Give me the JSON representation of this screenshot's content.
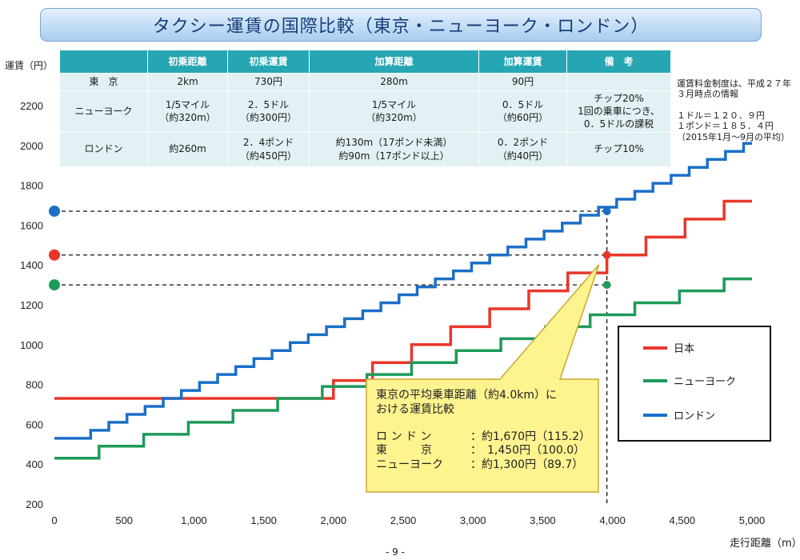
{
  "title": "タクシー運賃の国際比較（東京・ニューヨーク・ロンドン）",
  "fare_table": {
    "headers": [
      "",
      "初乗距離",
      "初乗運賃",
      "加算距離",
      "加算運賃",
      "備　考"
    ],
    "rows": [
      [
        "東　京",
        "2km",
        "730円",
        "280m",
        "90円",
        ""
      ],
      [
        "ニューヨーク",
        "1/5マイル\n（約320m）",
        "2．5ドル\n（約300円）",
        "1/5マイル\n（約320m）",
        "0．5ドル\n（約60円）",
        "チップ20%\n1回の乗車につき、\n0．5ドルの課税"
      ],
      [
        "ロンドン",
        "約260m",
        "2．4ポンド\n（約450円）",
        "約130m（17ポンド未満）\n約90m（17ポンド以上）",
        "0．2ポンド\n（約40円）",
        "チップ10%"
      ]
    ]
  },
  "notes": {
    "fare_basis": "運賃料金制度は、平成２７年\n３月時点の情報",
    "exchange": "１ドル＝１２０．９円\n１ポンド＝１８５．４円\n（2015年1月～9月の平均）"
  },
  "callout": {
    "heading": "東京の平均乗車距離（約4.0km）に\nおける運賃比較",
    "rows": [
      {
        "label": "ロ ン ド ン",
        "value": "：約1,670円（115.2）"
      },
      {
        "label": "東　　　京",
        "value": "：　1,450円（100.0）"
      },
      {
        "label": "ニューヨーク",
        "value": "：約1,300円（89.7）"
      }
    ]
  },
  "page_number": "- 9 -",
  "colors": {
    "japan": "#e8372a",
    "new_york": "#1e9a5a",
    "london": "#1b6fc8",
    "table_header": "#26a6b3",
    "table_cell": "#e1f1f4",
    "callout_fill": "#fdf38f"
  },
  "chart_data": {
    "type": "line",
    "xlabel": "走行距離（m）",
    "ylabel": "運賃（円）",
    "xlim": [
      0,
      5000
    ],
    "ylim": [
      200,
      2200
    ],
    "x_ticks": [
      0,
      500,
      1000,
      1500,
      2000,
      2500,
      3000,
      3500,
      4000,
      4500,
      5000
    ],
    "x_tick_labels": [
      "0",
      "500",
      "1,000",
      "1,500",
      "2,000",
      "2,500",
      "3,000",
      "3,500",
      "4,000",
      "4,500",
      "5,000"
    ],
    "y_ticks": [
      200,
      400,
      600,
      800,
      1000,
      1200,
      1400,
      1600,
      1800,
      2000,
      2200
    ],
    "step_chart": true,
    "series": [
      {
        "name": "日本",
        "color_key": "japan",
        "start_fare": 730,
        "first_distance": 2000,
        "step_distance": 280,
        "step_fare": 90
      },
      {
        "name": "ニューヨーク",
        "color_key": "new_york",
        "start_fare": 430,
        "first_distance": 320,
        "step_distance": 320,
        "step_fare": 60
      },
      {
        "name": "ロンドン",
        "color_key": "london",
        "start_fare": 530,
        "first_distance": 260,
        "step_distance": 130,
        "step_fare": 40
      }
    ],
    "reference": {
      "distance": 3960,
      "values": {
        "ロンドン": 1670,
        "日本": 1450,
        "ニューヨーク": 1300
      }
    },
    "legend_position": "right",
    "grid": false
  }
}
